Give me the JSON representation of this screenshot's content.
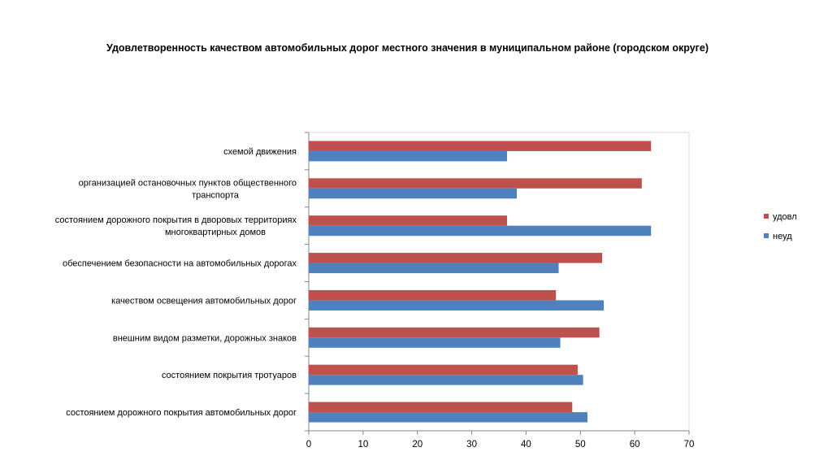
{
  "chart_data": {
    "type": "bar",
    "orientation": "horizontal",
    "title": "Удовлетворенность качеством автомобильных дорог местного значения в муниципальном районе (городском округе)",
    "categories": [
      [
        "схемой движения"
      ],
      [
        "организацией остановочных пунктов общественного",
        "транспорта"
      ],
      [
        "состоянием дорожного покрытия в дворовых территориях",
        "многоквартирных домов"
      ],
      [
        "обеспечением  безопасности на автомобильных дорогах"
      ],
      [
        "качеством освещения  автомобильных дорог"
      ],
      [
        "внешним видом разметки, дорожных знаков"
      ],
      [
        "состоянием покрытия тротуаров"
      ],
      [
        "состоянием дорожного покрытия автомобильных дорог"
      ]
    ],
    "series": [
      {
        "name": "удовл",
        "color": "#c0504d",
        "values": [
          63,
          61.3,
          36.5,
          54,
          45.5,
          53.5,
          49.5,
          48.5
        ]
      },
      {
        "name": "неуд",
        "color": "#4f81bd",
        "values": [
          36.5,
          38.3,
          63,
          46,
          54.3,
          46.3,
          50.5,
          51.3
        ]
      }
    ],
    "xlim": [
      0,
      70
    ],
    "xticks": [
      "0",
      "10",
      "20",
      "30",
      "40",
      "50",
      "60",
      "70"
    ],
    "grid": false,
    "legend_position": "right"
  }
}
